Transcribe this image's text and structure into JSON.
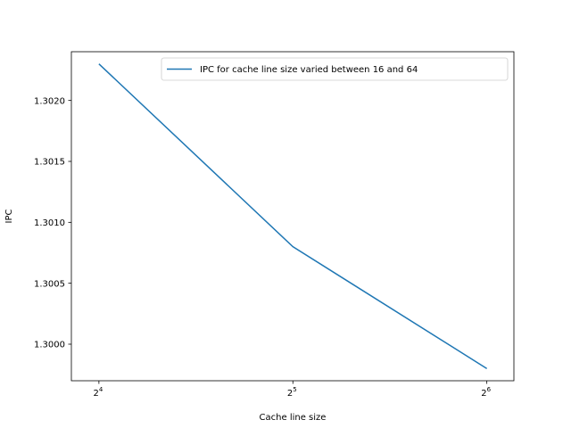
{
  "chart_data": {
    "type": "line",
    "title": "",
    "xlabel": "Cache line size",
    "ylabel": "IPC",
    "xscale": "log2",
    "x": [
      16,
      32,
      64
    ],
    "x_tick_labels": [
      {
        "value": 16,
        "base": "2",
        "exp": "4"
      },
      {
        "value": 32,
        "base": "2",
        "exp": "5"
      },
      {
        "value": 64,
        "base": "2",
        "exp": "6"
      }
    ],
    "series": [
      {
        "name": "IPC for cache line size varied between 16 and 64",
        "color": "#1f77b4",
        "values": [
          1.3023,
          1.3008,
          1.2998
        ]
      }
    ],
    "y_ticks": [
      "1.3000",
      "1.3005",
      "1.3010",
      "1.3015",
      "1.3020"
    ],
    "xlim": [
      14.5,
      70.5
    ],
    "ylim": [
      1.2997,
      1.3024
    ],
    "grid": false,
    "legend_position": "upper right"
  }
}
